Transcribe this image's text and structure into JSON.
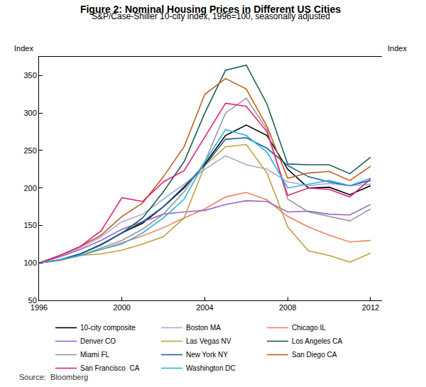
{
  "chart_data": {
    "type": "line",
    "title": "Figure 2: Nominal Housing Prices in Different US Cities",
    "subtitle": "S&P/Case-Shiller 10-city index, 1996=100, seasonally adjusted",
    "ylabel": "Index",
    "y2label": "Index",
    "source": "Source:  Bloomberg",
    "x": [
      1996,
      1997,
      1998,
      1999,
      2000,
      2001,
      2002,
      2003,
      2004,
      2005,
      2006,
      2007,
      2008,
      2009,
      2010,
      2011,
      2012
    ],
    "xlim": [
      1996,
      2012.55
    ],
    "xticks": [
      1996,
      2000,
      2004,
      2008,
      2012
    ],
    "ylim": [
      50,
      375
    ],
    "yticks": [
      50,
      100,
      150,
      200,
      250,
      300,
      350
    ],
    "y2lim": [
      50,
      375
    ],
    "y2ticks": [
      50,
      100,
      150,
      200,
      250,
      300,
      350
    ],
    "grid": false,
    "legend": "bottom",
    "series": [
      {
        "name": "10-city composite",
        "color": "#000000",
        "values": [
          100,
          104,
          112,
          124,
          140,
          153,
          175,
          200,
          232,
          270,
          284,
          270,
          225,
          200,
          201,
          191,
          203
        ]
      },
      {
        "name": "Boston MA",
        "color": "#a9a9d6",
        "values": [
          100,
          108,
          120,
          135,
          155,
          165,
          185,
          205,
          225,
          243,
          231,
          225,
          208,
          203,
          206,
          203,
          205
        ]
      },
      {
        "name": "Chicago IL",
        "color": "#f08060",
        "values": [
          100,
          103,
          110,
          118,
          127,
          136,
          147,
          160,
          172,
          188,
          194,
          184,
          162,
          148,
          137,
          128,
          130
        ]
      },
      {
        "name": "Denver CO",
        "color": "#9966cc",
        "values": [
          100,
          108,
          118,
          130,
          145,
          155,
          165,
          168,
          170,
          178,
          183,
          182,
          168,
          169,
          165,
          164,
          178
        ]
      },
      {
        "name": "Las Vegas NV",
        "color": "#c0a040",
        "values": [
          100,
          104,
          110,
          112,
          117,
          125,
          135,
          160,
          230,
          255,
          258,
          220,
          148,
          116,
          110,
          101,
          113
        ]
      },
      {
        "name": "Los Angeles CA",
        "color": "#1f5f4f",
        "values": [
          100,
          104,
          112,
          125,
          140,
          160,
          195,
          235,
          300,
          357,
          364,
          312,
          232,
          231,
          231,
          219,
          241
        ]
      },
      {
        "name": "Miami FL",
        "color": "#999999",
        "values": [
          100,
          104,
          110,
          120,
          130,
          145,
          165,
          195,
          235,
          300,
          320,
          278,
          185,
          168,
          162,
          156,
          172
        ]
      },
      {
        "name": "New York NY",
        "color": "#1f5fa0",
        "values": [
          100,
          104,
          112,
          124,
          140,
          155,
          175,
          202,
          230,
          265,
          267,
          253,
          230,
          215,
          208,
          203,
          210
        ]
      },
      {
        "name": "San Diego CA",
        "color": "#c06020",
        "values": [
          100,
          110,
          122,
          137,
          162,
          180,
          215,
          255,
          325,
          346,
          332,
          282,
          213,
          220,
          222,
          210,
          229
        ]
      },
      {
        "name": "San Francisco  CA",
        "color": "#e0207f",
        "values": [
          100,
          110,
          122,
          143,
          187,
          182,
          208,
          223,
          268,
          313,
          309,
          275,
          190,
          200,
          198,
          188,
          212
        ]
      },
      {
        "name": "Washington DC",
        "color": "#30b0e0",
        "values": [
          100,
          104,
          110,
          118,
          125,
          140,
          160,
          185,
          235,
          278,
          270,
          248,
          200,
          205,
          210,
          203,
          213
        ]
      }
    ]
  }
}
